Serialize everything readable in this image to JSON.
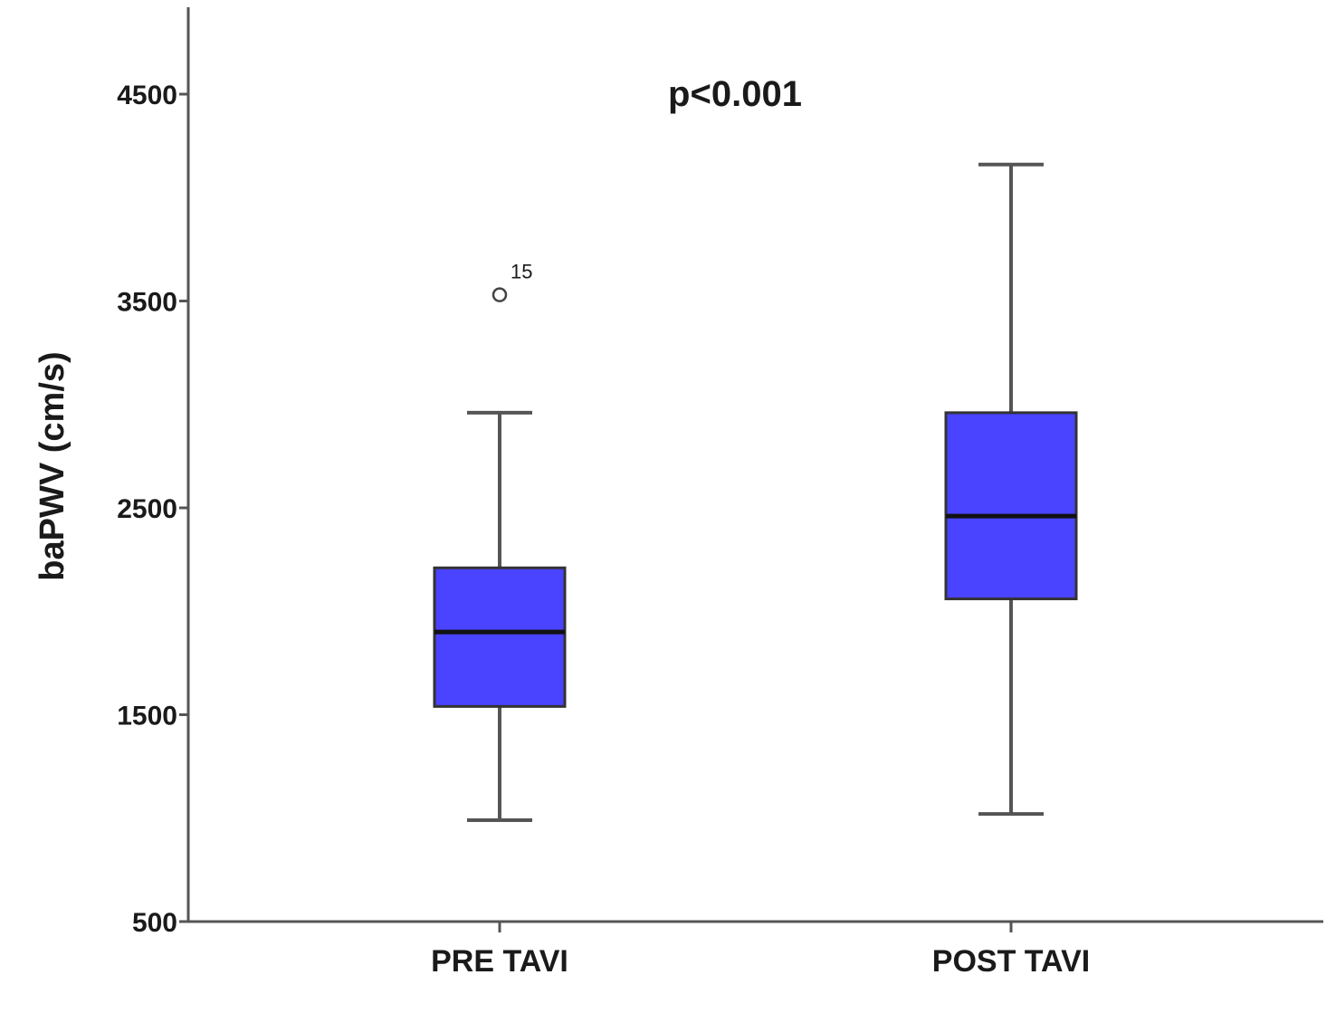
{
  "chart_data": {
    "type": "box",
    "title": "",
    "ylabel": "baPWV (cm/s)",
    "xlabel": "",
    "ylim": [
      500,
      4900
    ],
    "yticks": [
      500,
      1500,
      2500,
      3500,
      4500
    ],
    "annotation": "p<0.001",
    "grid": false,
    "box_color": "#4a43ff",
    "categories": [
      "PRE TAVI",
      "POST TAVI"
    ],
    "boxes": [
      {
        "category": "PRE TAVI",
        "whisker_low": 990,
        "q1": 1540,
        "median": 1900,
        "q3": 2210,
        "whisker_high": 2960,
        "outliers": [
          {
            "value": 3530,
            "label": "15"
          }
        ]
      },
      {
        "category": "POST TAVI",
        "whisker_low": 1020,
        "q1": 2060,
        "median": 2460,
        "q3": 2960,
        "whisker_high": 4160,
        "outliers": []
      }
    ]
  }
}
